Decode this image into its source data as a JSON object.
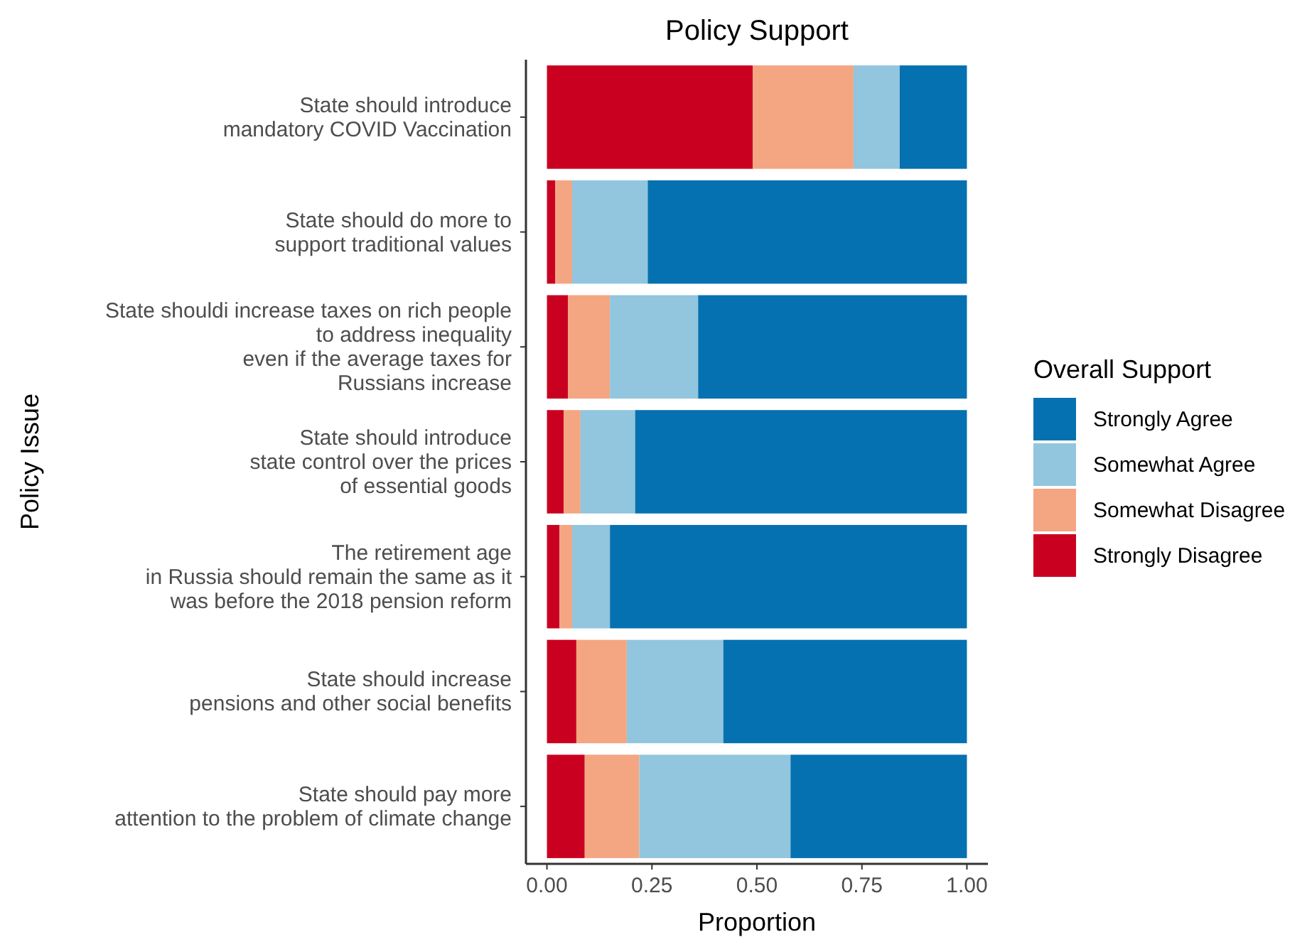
{
  "chart_data": {
    "type": "bar",
    "orientation": "horizontal",
    "stacked": true,
    "title": "Policy Support",
    "xlabel": "Proportion",
    "ylabel": "Policy Issue",
    "legend_title": "Overall Support",
    "legend": "right",
    "grid": false,
    "categories": [
      "State should introduce\nmandatory COVID Vaccination",
      "State should do more to\nsupport traditional values",
      "State shouldi increase taxes on rich people\nto address inequality\neven if the average taxes for\nRussians increase",
      "State should introduce\nstate control over the prices\nof essential goods",
      "The retirement age\nin Russia should remain the same as it\nwas before the 2018 pension reform",
      "State should increase\npensions and other social benefits",
      "State should pay more\nattention to the problem of climate change"
    ],
    "series": [
      {
        "name": "Strongly Disagree",
        "color": "#ca0020",
        "values": [
          0.49,
          0.02,
          0.05,
          0.04,
          0.03,
          0.07,
          0.09
        ]
      },
      {
        "name": "Somewhat Disagree",
        "color": "#f4a582",
        "values": [
          0.24,
          0.04,
          0.1,
          0.04,
          0.03,
          0.12,
          0.13
        ]
      },
      {
        "name": "Somewhat Agree",
        "color": "#92c5de",
        "values": [
          0.11,
          0.18,
          0.21,
          0.13,
          0.09,
          0.23,
          0.36
        ]
      },
      {
        "name": "Strongly Agree",
        "color": "#0571b0",
        "values": [
          0.16,
          0.76,
          0.64,
          0.79,
          0.85,
          0.58,
          0.42
        ]
      }
    ],
    "xlim": [
      -0.05,
      1.05
    ],
    "xticks": [
      {
        "value": 0,
        "label": "0.00"
      },
      {
        "value": 0.25,
        "label": "0.25"
      },
      {
        "value": 0.5,
        "label": "0.50"
      },
      {
        "value": 0.75,
        "label": "0.75"
      },
      {
        "value": 1,
        "label": "1.00"
      }
    ]
  }
}
